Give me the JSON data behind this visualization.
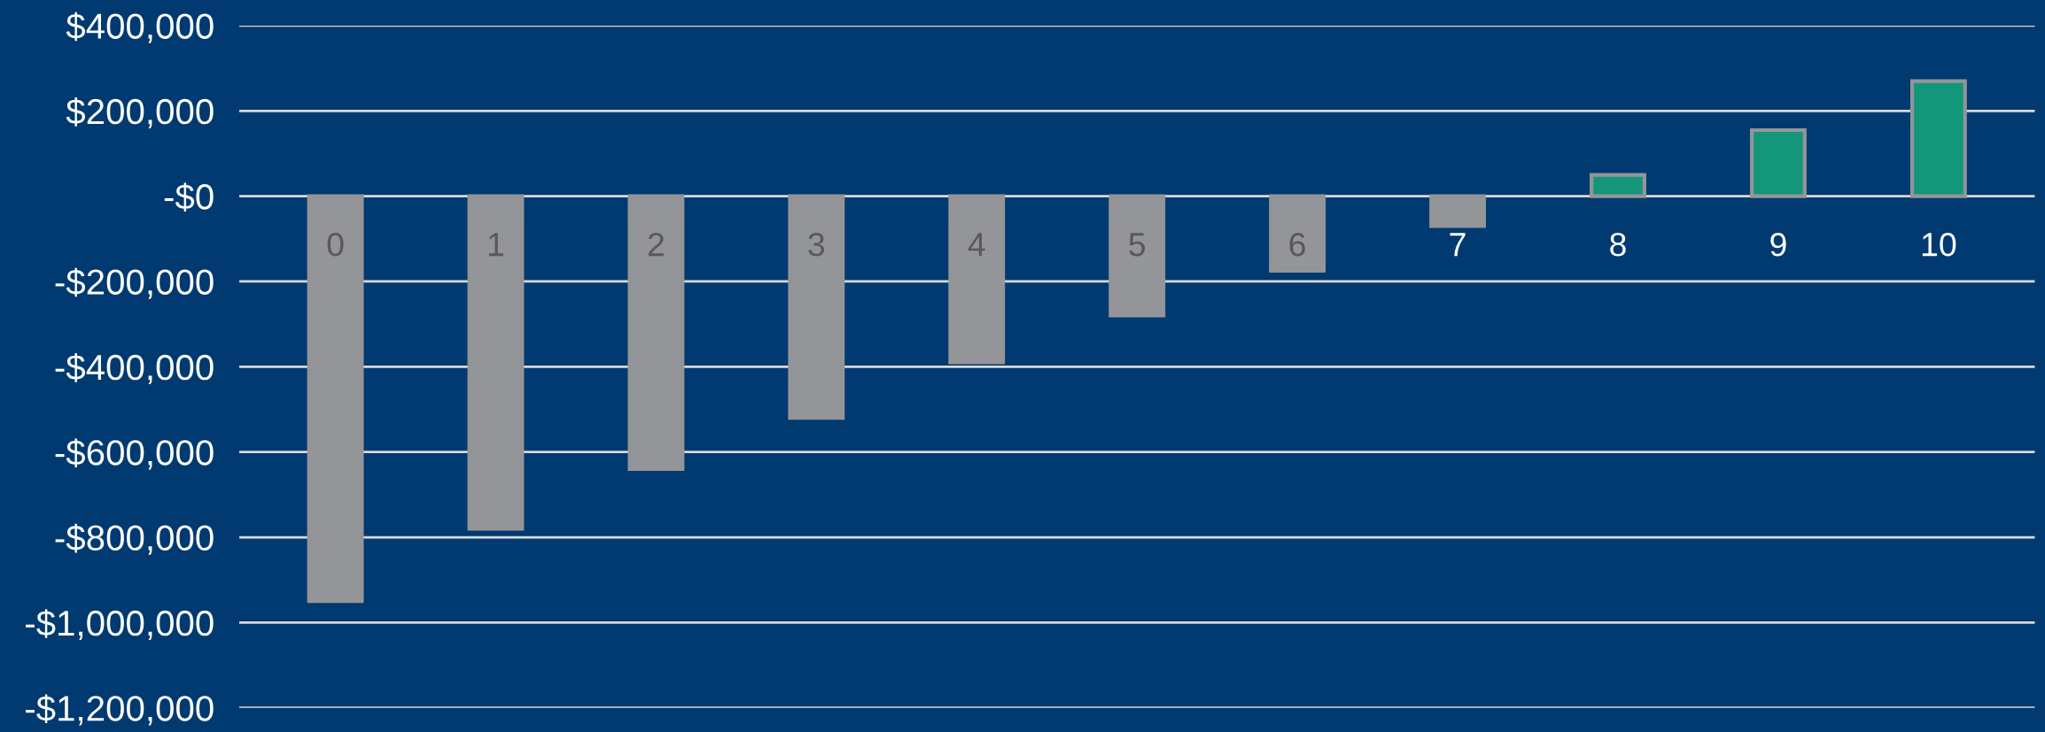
{
  "chart_data": {
    "type": "bar",
    "categories": [
      "0",
      "1",
      "2",
      "3",
      "4",
      "5",
      "6",
      "7",
      "8",
      "9",
      "10"
    ],
    "values": [
      -950000,
      -780000,
      -640000,
      -520000,
      -390000,
      -280000,
      -175000,
      -70000,
      50000,
      155000,
      270000
    ],
    "colors": [
      "#939598",
      "#939598",
      "#939598",
      "#939598",
      "#939598",
      "#939598",
      "#939598",
      "#939598",
      "#14967a",
      "#14967a",
      "#14967a"
    ],
    "ylim": [
      -1200000,
      400000
    ],
    "yticks": [
      {
        "value": -1200000,
        "label": "-$1,200,000"
      },
      {
        "value": -1000000,
        "label": "-$1,000,000"
      },
      {
        "value": -800000,
        "label": "-$800,000"
      },
      {
        "value": -600000,
        "label": "-$600,000"
      },
      {
        "value": -400000,
        "label": "-$400,000"
      },
      {
        "value": -200000,
        "label": "-$200,000"
      },
      {
        "value": 0,
        "label": "-$0"
      },
      {
        "value": 200000,
        "label": "$200,000"
      },
      {
        "value": 400000,
        "label": "$400,000"
      }
    ],
    "grid": "y"
  }
}
